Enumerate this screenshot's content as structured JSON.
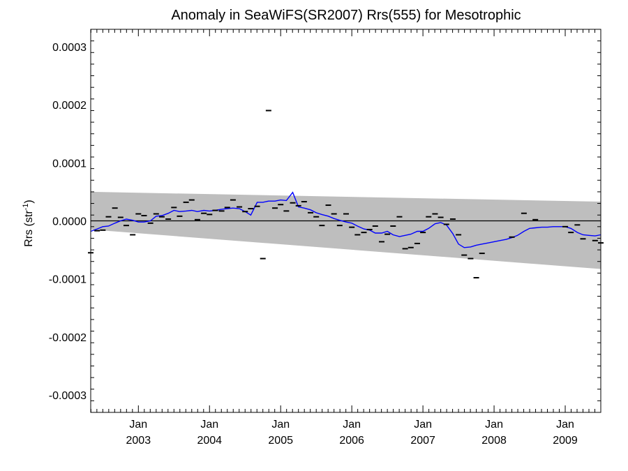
{
  "chart_data": {
    "type": "scatter",
    "title": "Anomaly in SeaWiFS(SR2007) Rrs(555) for Mesotrophic",
    "ylabel": "Rrs (str",
    "ylabel_sup": "-1",
    "ylabel_end": ")",
    "xlabel": "",
    "xlim": [
      2002.33,
      2009.5
    ],
    "ylim": [
      -0.00033,
      0.00033
    ],
    "y_ticks": [
      -0.0003,
      -0.0002,
      -0.0001,
      0.0,
      0.0001,
      0.0002,
      0.0003
    ],
    "y_tick_labels": [
      "-0.0003",
      "-0.0002",
      "-0.0001",
      "0.0000",
      "0.0001",
      "0.0002",
      "0.0003"
    ],
    "x_ticks": [
      {
        "x": 2003.0,
        "month": "Jan",
        "year": "2003"
      },
      {
        "x": 2004.0,
        "month": "Jan",
        "year": "2004"
      },
      {
        "x": 2005.0,
        "month": "Jan",
        "year": "2005"
      },
      {
        "x": 2006.0,
        "month": "Jan",
        "year": "2006"
      },
      {
        "x": 2007.0,
        "month": "Jan",
        "year": "2007"
      },
      {
        "x": 2008.0,
        "month": "Jan",
        "year": "2008"
      },
      {
        "x": 2009.0,
        "month": "Jan",
        "year": "2009"
      }
    ],
    "reference_line_y": 0.0,
    "confidence_band": {
      "color": "#bebebe",
      "upper": [
        [
          2002.33,
          5e-05
        ],
        [
          2009.5,
          3.3e-05
        ]
      ],
      "lower": [
        [
          2002.33,
          -1.5e-05
        ],
        [
          2009.5,
          -8.3e-05
        ]
      ]
    },
    "points_color": "#000000",
    "points": [
      [
        2002.33,
        -5.5e-05
      ],
      [
        2002.42,
        -1.7e-05
      ],
      [
        2002.5,
        -1.6e-05
      ],
      [
        2002.58,
        7e-06
      ],
      [
        2002.67,
        2.2e-05
      ],
      [
        2002.75,
        6e-06
      ],
      [
        2002.83,
        -8e-06
      ],
      [
        2002.92,
        -2.4e-05
      ],
      [
        2003.0,
        1.2e-05
      ],
      [
        2003.08,
        9e-06
      ],
      [
        2003.17,
        -4e-06
      ],
      [
        2003.25,
        1.2e-05
      ],
      [
        2003.33,
        7e-06
      ],
      [
        2003.42,
        3e-06
      ],
      [
        2003.5,
        2.3e-05
      ],
      [
        2003.58,
        8e-06
      ],
      [
        2003.67,
        3.2e-05
      ],
      [
        2003.75,
        3.6e-05
      ],
      [
        2003.83,
        2e-06
      ],
      [
        2003.92,
        1.3e-05
      ],
      [
        2004.0,
        1.1e-05
      ],
      [
        2004.08,
        1.8e-05
      ],
      [
        2004.17,
        1.7e-05
      ],
      [
        2004.25,
        2.3e-05
      ],
      [
        2004.33,
        3.6e-05
      ],
      [
        2004.42,
        2.4e-05
      ],
      [
        2004.5,
        1.6e-05
      ],
      [
        2004.58,
        2.1e-05
      ],
      [
        2004.67,
        2.5e-05
      ],
      [
        2004.75,
        -6.5e-05
      ],
      [
        2004.83,
        0.00019
      ],
      [
        2004.92,
        2.2e-05
      ],
      [
        2005.0,
        2.8e-05
      ],
      [
        2005.08,
        1.7e-05
      ],
      [
        2005.17,
        3.1e-05
      ],
      [
        2005.25,
        2.6e-05
      ],
      [
        2005.33,
        3.3e-05
      ],
      [
        2005.42,
        1.4e-05
      ],
      [
        2005.5,
        7e-06
      ],
      [
        2005.58,
        -8e-06
      ],
      [
        2005.67,
        2.7e-05
      ],
      [
        2005.75,
        1.2e-05
      ],
      [
        2005.83,
        -8e-06
      ],
      [
        2005.92,
        1.2e-05
      ],
      [
        2006.0,
        -1.1e-05
      ],
      [
        2006.08,
        -2.4e-05
      ],
      [
        2006.17,
        -2e-05
      ],
      [
        2006.25,
        -1.5e-05
      ],
      [
        2006.33,
        -9e-06
      ],
      [
        2006.42,
        -3.6e-05
      ],
      [
        2006.5,
        -2.3e-05
      ],
      [
        2006.58,
        -9e-06
      ],
      [
        2006.67,
        7e-06
      ],
      [
        2006.75,
        -4.8e-05
      ],
      [
        2006.83,
        -4.6e-05
      ],
      [
        2006.92,
        -3.9e-05
      ],
      [
        2007.0,
        -2e-05
      ],
      [
        2007.08,
        7e-06
      ],
      [
        2007.17,
        1.2e-05
      ],
      [
        2007.25,
        6e-06
      ],
      [
        2007.33,
        -6e-06
      ],
      [
        2007.42,
        3e-06
      ],
      [
        2007.5,
        -2.4e-05
      ],
      [
        2007.58,
        -5.9e-05
      ],
      [
        2007.67,
        -6.5e-05
      ],
      [
        2007.75,
        -9.8e-05
      ],
      [
        2007.83,
        -5.6e-05
      ],
      [
        2008.25,
        -2.8e-05
      ],
      [
        2008.42,
        1.3e-05
      ],
      [
        2008.58,
        2e-06
      ],
      [
        2009.0,
        -1e-05
      ],
      [
        2009.08,
        -2e-05
      ],
      [
        2009.17,
        -7e-06
      ],
      [
        2009.25,
        -3.1e-05
      ],
      [
        2009.42,
        -3.4e-05
      ],
      [
        2009.5,
        -3.8e-05
      ]
    ],
    "line_color": "#0000ff",
    "line": [
      [
        2002.33,
        -1.8e-05
      ],
      [
        2002.42,
        -1.4e-05
      ],
      [
        2002.5,
        -1e-05
      ],
      [
        2002.58,
        -9e-06
      ],
      [
        2002.67,
        -4e-06
      ],
      [
        2002.75,
        0.0
      ],
      [
        2002.83,
        3e-06
      ],
      [
        2002.92,
        1e-06
      ],
      [
        2003.0,
        -2e-06
      ],
      [
        2003.08,
        -2e-06
      ],
      [
        2003.17,
        0.0
      ],
      [
        2003.25,
        8e-06
      ],
      [
        2003.33,
        9e-06
      ],
      [
        2003.42,
        1.3e-05
      ],
      [
        2003.5,
        1.8e-05
      ],
      [
        2003.58,
        1.6e-05
      ],
      [
        2003.67,
        1.7e-05
      ],
      [
        2003.75,
        1.8e-05
      ],
      [
        2003.83,
        1.6e-05
      ],
      [
        2003.92,
        1.8e-05
      ],
      [
        2004.0,
        1.7e-05
      ],
      [
        2004.08,
        1.8e-05
      ],
      [
        2004.17,
        2e-05
      ],
      [
        2004.25,
        2.1e-05
      ],
      [
        2004.33,
        2.2e-05
      ],
      [
        2004.42,
        2.1e-05
      ],
      [
        2004.5,
        1.6e-05
      ],
      [
        2004.58,
        1e-05
      ],
      [
        2004.67,
        3.2e-05
      ],
      [
        2004.75,
        3.2e-05
      ],
      [
        2004.83,
        3.4e-05
      ],
      [
        2004.92,
        3.4e-05
      ],
      [
        2005.0,
        3.6e-05
      ],
      [
        2005.08,
        3.5e-05
      ],
      [
        2005.17,
        4.9e-05
      ],
      [
        2005.25,
        2.4e-05
      ],
      [
        2005.33,
        2.2e-05
      ],
      [
        2005.42,
        1.9e-05
      ],
      [
        2005.5,
        1.4e-05
      ],
      [
        2005.58,
        1.1e-05
      ],
      [
        2005.67,
        8e-06
      ],
      [
        2005.75,
        4e-06
      ],
      [
        2005.83,
        1e-06
      ],
      [
        2005.92,
        -2e-06
      ],
      [
        2006.0,
        -4e-06
      ],
      [
        2006.08,
        -9e-06
      ],
      [
        2006.17,
        -1.4e-05
      ],
      [
        2006.25,
        -1.6e-05
      ],
      [
        2006.33,
        -2.1e-05
      ],
      [
        2006.42,
        -2.1e-05
      ],
      [
        2006.5,
        -1.8e-05
      ],
      [
        2006.58,
        -2.4e-05
      ],
      [
        2006.67,
        -2.7e-05
      ],
      [
        2006.75,
        -2.5e-05
      ],
      [
        2006.83,
        -2.3e-05
      ],
      [
        2006.92,
        -1.8e-05
      ],
      [
        2007.0,
        -1.8e-05
      ],
      [
        2007.08,
        -1.3e-05
      ],
      [
        2007.17,
        -5e-06
      ],
      [
        2007.25,
        -3e-06
      ],
      [
        2007.33,
        -7e-06
      ],
      [
        2007.42,
        -2.2e-05
      ],
      [
        2007.5,
        -4e-05
      ],
      [
        2007.58,
        -4.6e-05
      ],
      [
        2007.67,
        -4.5e-05
      ],
      [
        2007.75,
        -4.2e-05
      ],
      [
        2007.83,
        -4e-05
      ],
      [
        2007.92,
        -3.8e-05
      ],
      [
        2008.0,
        -3.6e-05
      ],
      [
        2008.08,
        -3.4e-05
      ],
      [
        2008.17,
        -3.2e-05
      ],
      [
        2008.25,
        -2.9e-05
      ],
      [
        2008.33,
        -2.5e-05
      ],
      [
        2008.42,
        -1.8e-05
      ],
      [
        2008.5,
        -1.3e-05
      ],
      [
        2008.58,
        -1.2e-05
      ],
      [
        2008.67,
        -1.1e-05
      ],
      [
        2008.75,
        -1.1e-05
      ],
      [
        2008.83,
        -1e-05
      ],
      [
        2008.92,
        -1e-05
      ],
      [
        2009.0,
        -1e-05
      ],
      [
        2009.08,
        -1.3e-05
      ],
      [
        2009.17,
        -2e-05
      ],
      [
        2009.25,
        -2.4e-05
      ],
      [
        2009.33,
        -2.5e-05
      ],
      [
        2009.42,
        -2.6e-05
      ],
      [
        2009.5,
        -2.4e-05
      ]
    ]
  }
}
